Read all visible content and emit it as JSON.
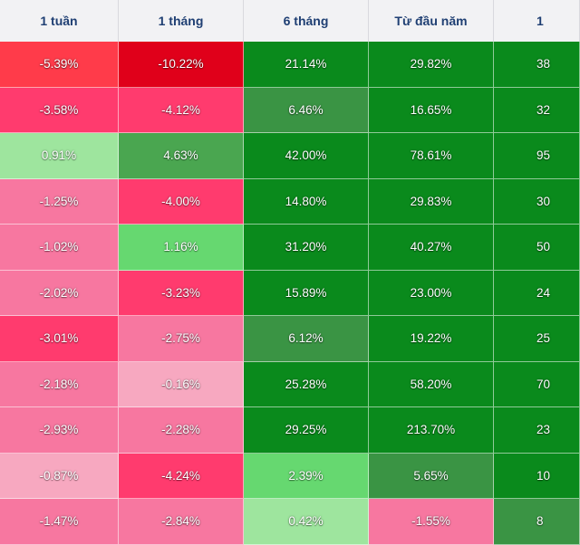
{
  "header": {
    "columns": [
      "1 tuần",
      "1 tháng",
      "6 tháng",
      "Từ đầu năm",
      "1"
    ]
  },
  "colors": {
    "header_bg": "#f2f2f4",
    "header_text": "#1f3f73",
    "strong_red": "#e0001a",
    "red": "#ff3b5c",
    "pink": "#f777a0",
    "light_pink": "#f7a8c0",
    "dark_green": "#0a8a1c",
    "mid_green": "#3aa044",
    "light_green": "#66d870",
    "pale_green": "#9ee59e"
  },
  "rows": [
    {
      "values": [
        "-5.39%",
        "-10.22%",
        "21.14%",
        "29.82%",
        "38"
      ],
      "colors": [
        "#ff3b4a",
        "#e0001a",
        "#0a8a1c",
        "#0a8a1c",
        "#0a8a1c"
      ]
    },
    {
      "values": [
        "-3.58%",
        "-4.12%",
        "6.46%",
        "16.65%",
        "32"
      ],
      "colors": [
        "#ff3b6e",
        "#ff3b6e",
        "#3a9444",
        "#0a8a1c",
        "#0a8a1c"
      ]
    },
    {
      "values": [
        "0.91%",
        "4.63%",
        "42.00%",
        "78.61%",
        "95"
      ],
      "colors": [
        "#9ee59e",
        "#4aa650",
        "#0a8a1c",
        "#0a8a1c",
        "#0a8a1c"
      ]
    },
    {
      "values": [
        "-1.25%",
        "-4.00%",
        "14.80%",
        "29.83%",
        "30"
      ],
      "colors": [
        "#f777a0",
        "#ff3b6e",
        "#0a8a1c",
        "#0a8a1c",
        "#0a8a1c"
      ]
    },
    {
      "values": [
        "-1.02%",
        "1.16%",
        "31.20%",
        "40.27%",
        "50"
      ],
      "colors": [
        "#f777a0",
        "#66d870",
        "#0a8a1c",
        "#0a8a1c",
        "#0a8a1c"
      ]
    },
    {
      "values": [
        "-2.02%",
        "-3.23%",
        "15.89%",
        "23.00%",
        "24"
      ],
      "colors": [
        "#f777a0",
        "#ff3b6e",
        "#0a8a1c",
        "#0a8a1c",
        "#0a8a1c"
      ]
    },
    {
      "values": [
        "-3.01%",
        "-2.75%",
        "6.12%",
        "19.22%",
        "25"
      ],
      "colors": [
        "#ff3b6e",
        "#f777a0",
        "#3a9444",
        "#0a8a1c",
        "#0a8a1c"
      ]
    },
    {
      "values": [
        "-2.18%",
        "-0.16%",
        "25.28%",
        "58.20%",
        "70"
      ],
      "colors": [
        "#f777a0",
        "#f7a8c0",
        "#0a8a1c",
        "#0a8a1c",
        "#0a8a1c"
      ]
    },
    {
      "values": [
        "-2.93%",
        "-2.28%",
        "29.25%",
        "213.70%",
        "23"
      ],
      "colors": [
        "#f777a0",
        "#f777a0",
        "#0a8a1c",
        "#0a8a1c",
        "#0a8a1c"
      ]
    },
    {
      "values": [
        "-0.87%",
        "-4.24%",
        "2.39%",
        "5.65%",
        "10"
      ],
      "colors": [
        "#f7a8c0",
        "#ff3b6e",
        "#66d870",
        "#3a9444",
        "#0a8a1c"
      ]
    },
    {
      "values": [
        "-1.47%",
        "-2.84%",
        "0.42%",
        "-1.55%",
        "8"
      ],
      "colors": [
        "#f777a0",
        "#f777a0",
        "#9ee59e",
        "#f777a0",
        "#3a9444"
      ]
    }
  ]
}
